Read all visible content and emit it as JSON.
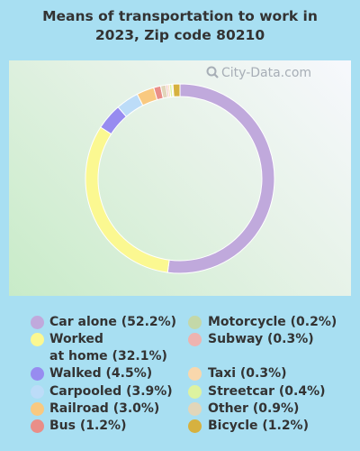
{
  "title_line1": "Means of transportation to work in",
  "title_line2": "2023, Zip code 80210",
  "watermark": "City-Data.com",
  "chart_data": {
    "type": "pie",
    "donut": true,
    "title": "Means of transportation to work in 2023, Zip code 80210",
    "legend_placement": "bottom",
    "slices": [
      {
        "label": "Car alone (52.2%)",
        "value": 52.2,
        "color": "#c0a9dc"
      },
      {
        "label": "Worked at home (32.1%)",
        "label_lines": [
          "Worked",
          "at home (32.1%)"
        ],
        "value": 32.1,
        "color": "#fbf891"
      },
      {
        "label": "Walked (4.5%)",
        "value": 4.5,
        "color": "#978cf0"
      },
      {
        "label": "Carpooled (3.9%)",
        "value": 3.9,
        "color": "#bcdcf8"
      },
      {
        "label": "Railroad (3.0%)",
        "value": 3.0,
        "color": "#f9c980"
      },
      {
        "label": "Bus (1.2%)",
        "value": 1.2,
        "color": "#e98e88"
      },
      {
        "label": "Motorcycle (0.2%)",
        "value": 0.2,
        "color": "#c4d8a8"
      },
      {
        "label": "Subway (0.3%)",
        "value": 0.3,
        "color": "#eeb3b0"
      },
      {
        "label": "Taxi (0.3%)",
        "value": 0.3,
        "color": "#f9d7ac"
      },
      {
        "label": "Streetcar (0.4%)",
        "value": 0.4,
        "color": "#ddf3a0"
      },
      {
        "label": "Other (0.9%)",
        "value": 0.9,
        "color": "#e2d6ba"
      },
      {
        "label": "Bicycle (1.2%)",
        "value": 1.2,
        "color": "#d6b13f"
      }
    ]
  }
}
